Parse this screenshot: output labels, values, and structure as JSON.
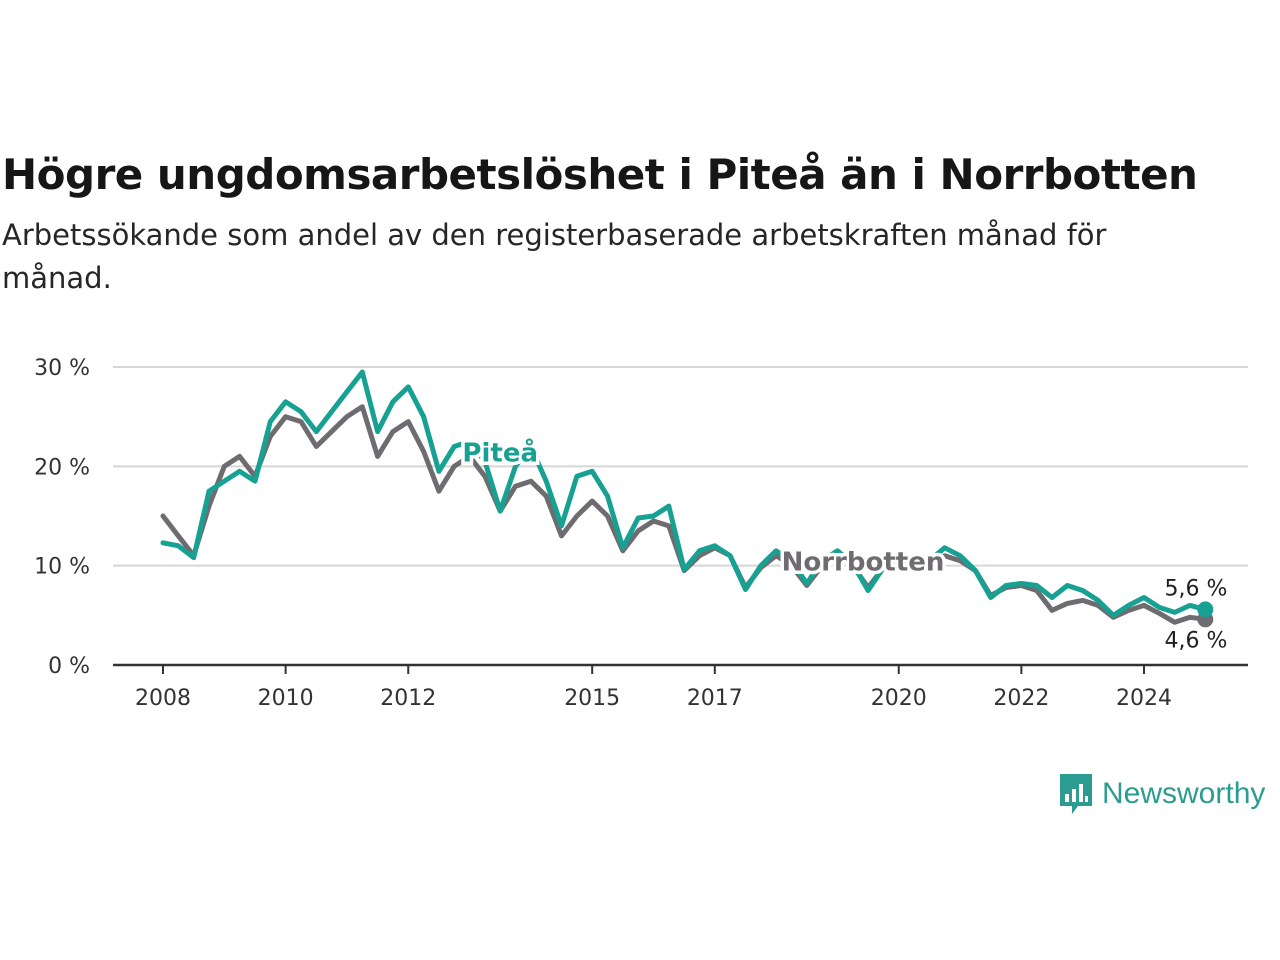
{
  "title": "Högre ungdomsarbetslöshet i Piteå än i Norrbotten",
  "subtitle": "Arbetssökande som andel av den registerbaserade arbetskraften månad för månad.",
  "brand": {
    "name": "Newsworthy",
    "color": "#2b9c8f",
    "icon": "newsworthy-chart-logo-icon"
  },
  "chart_data": {
    "type": "line",
    "x_axis": {
      "tick_labels": [
        "2008",
        "2010",
        "2012",
        "2015",
        "2017",
        "2020",
        "2022",
        "2024"
      ]
    },
    "y_axis": {
      "tick_labels": [
        "0 %",
        "10 %",
        "20 %",
        "30 %"
      ],
      "range": [
        0,
        30
      ],
      "unit": "%"
    },
    "grid": "horizontal",
    "series": [
      {
        "name": "Norrbotten",
        "color": "#6e6c70",
        "end_label": "4,6 %",
        "points": [
          [
            "2008-01",
            15.0
          ],
          [
            "2008-04",
            13.0
          ],
          [
            "2008-07",
            11.0
          ],
          [
            "2008-10",
            16.0
          ],
          [
            "2009-01",
            20.0
          ],
          [
            "2009-04",
            21.0
          ],
          [
            "2009-07",
            19.0
          ],
          [
            "2009-10",
            23.0
          ],
          [
            "2010-01",
            25.0
          ],
          [
            "2010-04",
            24.5
          ],
          [
            "2010-07",
            22.0
          ],
          [
            "2010-10",
            23.5
          ],
          [
            "2011-01",
            25.0
          ],
          [
            "2011-04",
            26.0
          ],
          [
            "2011-07",
            21.0
          ],
          [
            "2011-10",
            23.5
          ],
          [
            "2012-01",
            24.5
          ],
          [
            "2012-04",
            21.5
          ],
          [
            "2012-07",
            17.5
          ],
          [
            "2012-10",
            20.0
          ],
          [
            "2013-01",
            21.0
          ],
          [
            "2013-04",
            19.0
          ],
          [
            "2013-07",
            15.5
          ],
          [
            "2013-10",
            18.0
          ],
          [
            "2014-01",
            18.5
          ],
          [
            "2014-04",
            17.0
          ],
          [
            "2014-07",
            13.0
          ],
          [
            "2014-10",
            15.0
          ],
          [
            "2015-01",
            16.5
          ],
          [
            "2015-04",
            15.0
          ],
          [
            "2015-07",
            11.5
          ],
          [
            "2015-10",
            13.5
          ],
          [
            "2016-01",
            14.5
          ],
          [
            "2016-04",
            14.0
          ],
          [
            "2016-07",
            9.5
          ],
          [
            "2016-10",
            11.0
          ],
          [
            "2017-01",
            11.8
          ],
          [
            "2017-04",
            11.0
          ],
          [
            "2017-07",
            7.8
          ],
          [
            "2017-10",
            9.8
          ],
          [
            "2018-01",
            11.0
          ],
          [
            "2018-04",
            10.0
          ],
          [
            "2018-07",
            8.0
          ],
          [
            "2018-10",
            10.0
          ],
          [
            "2019-01",
            11.0
          ],
          [
            "2019-04",
            10.0
          ],
          [
            "2019-07",
            7.8
          ],
          [
            "2019-10",
            9.8
          ],
          [
            "2020-01",
            10.5
          ],
          [
            "2020-04",
            10.8
          ],
          [
            "2020-07",
            10.0
          ],
          [
            "2020-10",
            11.0
          ],
          [
            "2021-01",
            10.5
          ],
          [
            "2021-04",
            9.5
          ],
          [
            "2021-07",
            7.0
          ],
          [
            "2021-10",
            7.8
          ],
          [
            "2022-01",
            8.0
          ],
          [
            "2022-04",
            7.5
          ],
          [
            "2022-07",
            5.5
          ],
          [
            "2022-10",
            6.2
          ],
          [
            "2023-01",
            6.5
          ],
          [
            "2023-04",
            6.0
          ],
          [
            "2023-07",
            4.8
          ],
          [
            "2023-10",
            5.5
          ],
          [
            "2024-01",
            6.0
          ],
          [
            "2024-04",
            5.2
          ],
          [
            "2024-07",
            4.3
          ],
          [
            "2024-10",
            4.8
          ],
          [
            "2025-01",
            4.6
          ]
        ]
      },
      {
        "name": "Piteå",
        "color": "#17a192",
        "end_label": "5,6 %",
        "points": [
          [
            "2008-01",
            12.3
          ],
          [
            "2008-04",
            12.0
          ],
          [
            "2008-07",
            10.8
          ],
          [
            "2008-10",
            17.5
          ],
          [
            "2009-01",
            18.5
          ],
          [
            "2009-04",
            19.5
          ],
          [
            "2009-07",
            18.5
          ],
          [
            "2009-10",
            24.5
          ],
          [
            "2010-01",
            26.5
          ],
          [
            "2010-04",
            25.5
          ],
          [
            "2010-07",
            23.5
          ],
          [
            "2010-10",
            25.5
          ],
          [
            "2011-01",
            27.5
          ],
          [
            "2011-04",
            29.5
          ],
          [
            "2011-07",
            23.5
          ],
          [
            "2011-10",
            26.5
          ],
          [
            "2012-01",
            28.0
          ],
          [
            "2012-04",
            25.0
          ],
          [
            "2012-07",
            19.5
          ],
          [
            "2012-10",
            22.0
          ],
          [
            "2013-01",
            22.5
          ],
          [
            "2013-04",
            20.5
          ],
          [
            "2013-07",
            15.5
          ],
          [
            "2013-10",
            20.0
          ],
          [
            "2014-01",
            22.0
          ],
          [
            "2014-04",
            18.5
          ],
          [
            "2014-07",
            14.0
          ],
          [
            "2014-10",
            19.0
          ],
          [
            "2015-01",
            19.5
          ],
          [
            "2015-04",
            17.0
          ],
          [
            "2015-07",
            11.8
          ],
          [
            "2015-10",
            14.8
          ],
          [
            "2016-01",
            15.0
          ],
          [
            "2016-04",
            16.0
          ],
          [
            "2016-07",
            9.6
          ],
          [
            "2016-10",
            11.5
          ],
          [
            "2017-01",
            12.0
          ],
          [
            "2017-04",
            11.0
          ],
          [
            "2017-07",
            7.6
          ],
          [
            "2017-10",
            10.0
          ],
          [
            "2018-01",
            11.5
          ],
          [
            "2018-04",
            10.5
          ],
          [
            "2018-07",
            8.2
          ],
          [
            "2018-10",
            10.5
          ],
          [
            "2019-01",
            11.5
          ],
          [
            "2019-04",
            10.2
          ],
          [
            "2019-07",
            7.5
          ],
          [
            "2019-10",
            9.8
          ],
          [
            "2020-01",
            10.8
          ],
          [
            "2020-04",
            10.5
          ],
          [
            "2020-07",
            10.5
          ],
          [
            "2020-10",
            11.8
          ],
          [
            "2021-01",
            11.0
          ],
          [
            "2021-04",
            9.5
          ],
          [
            "2021-07",
            6.8
          ],
          [
            "2021-10",
            8.0
          ],
          [
            "2022-01",
            8.2
          ],
          [
            "2022-04",
            8.0
          ],
          [
            "2022-07",
            6.8
          ],
          [
            "2022-10",
            8.0
          ],
          [
            "2023-01",
            7.5
          ],
          [
            "2023-04",
            6.5
          ],
          [
            "2023-07",
            5.0
          ],
          [
            "2023-10",
            6.0
          ],
          [
            "2024-01",
            6.8
          ],
          [
            "2024-04",
            5.8
          ],
          [
            "2024-07",
            5.3
          ],
          [
            "2024-10",
            6.0
          ],
          [
            "2025-01",
            5.6
          ]
        ]
      }
    ]
  }
}
